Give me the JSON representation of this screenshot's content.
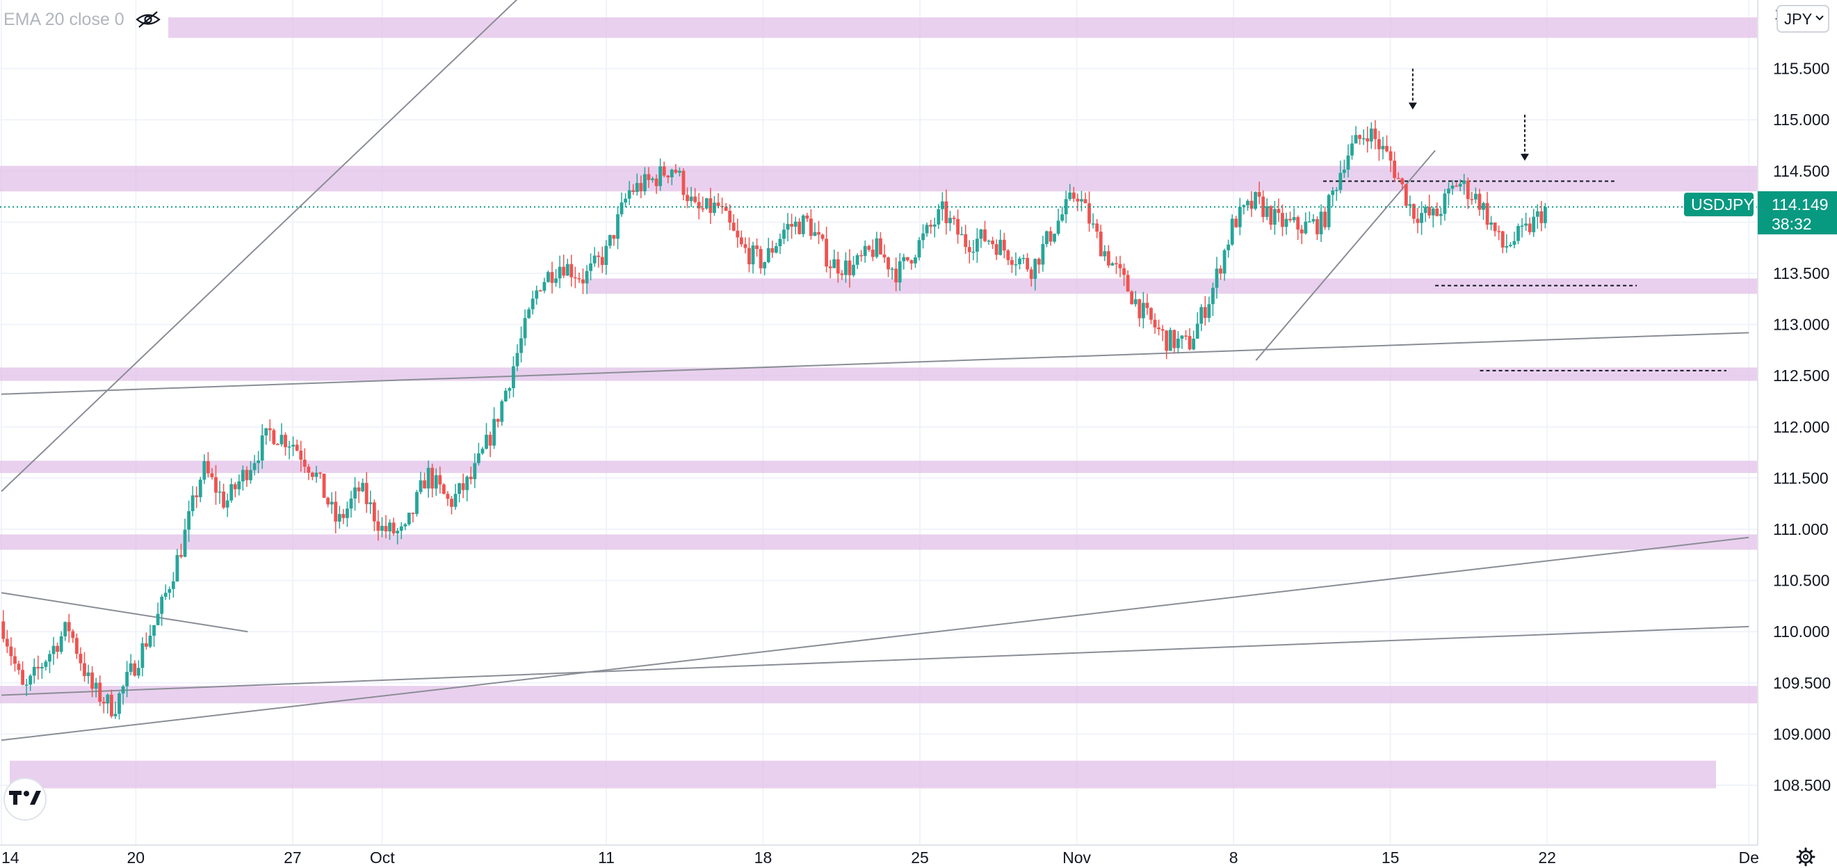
{
  "indicator": {
    "legend_label": "EMA 20 close 0",
    "icon": "eye-crossed-icon"
  },
  "symbol": {
    "name": "USDJPY",
    "last_price_label": "114.149",
    "countdown": "38:32",
    "currency_button": "JPY",
    "colors": {
      "up": "#26a69a",
      "down": "#ef5350",
      "badge": "#089981",
      "zone": "#e1bee7"
    }
  },
  "toolbar": {
    "logo": "tradingview-logo-icon",
    "settings_icon": "gear-icon"
  },
  "chart_data": {
    "type": "candlestick",
    "symbol": "USDJPY",
    "y_axis": {
      "range": [
        108.3,
        116.0
      ],
      "ticks": [
        "108.500",
        "109.000",
        "109.500",
        "110.000",
        "110.500",
        "111.000",
        "111.500",
        "112.000",
        "112.500",
        "113.000",
        "113.500",
        "114.000",
        "114.500",
        "115.000",
        "115.500"
      ],
      "top_cut_label": "1"
    },
    "x_axis": {
      "range": [
        "Sep 14 2021",
        "Dec 1 2021"
      ],
      "ticks": [
        {
          "label": "14",
          "date": "2021-09-14"
        },
        {
          "label": "20",
          "date": "2021-09-20"
        },
        {
          "label": "27",
          "date": "2021-09-27"
        },
        {
          "label": "Oct",
          "date": "2021-10-01"
        },
        {
          "label": "11",
          "date": "2021-10-11"
        },
        {
          "label": "18",
          "date": "2021-10-18"
        },
        {
          "label": "25",
          "date": "2021-10-25"
        },
        {
          "label": "Nov",
          "date": "2021-11-01"
        },
        {
          "label": "8",
          "date": "2021-11-08"
        },
        {
          "label": "15",
          "date": "2021-11-15"
        },
        {
          "label": "22",
          "date": "2021-11-22"
        },
        {
          "label": "De",
          "date": "2021-12-01"
        }
      ]
    },
    "current_price": 114.149,
    "price_path": [
      [
        "2021-09-14",
        110.1
      ],
      [
        "2021-09-15",
        109.4
      ],
      [
        "2021-09-16",
        109.75
      ],
      [
        "2021-09-17",
        110.05
      ],
      [
        "2021-09-18",
        109.45
      ],
      [
        "2021-09-19",
        109.25
      ],
      [
        "2021-09-20",
        109.7
      ],
      [
        "2021-09-21",
        110.15
      ],
      [
        "2021-09-22",
        110.8
      ],
      [
        "2021-09-23",
        111.6
      ],
      [
        "2021-09-24",
        111.25
      ],
      [
        "2021-09-25",
        111.6
      ],
      [
        "2021-09-26",
        111.95
      ],
      [
        "2021-09-27",
        111.85
      ],
      [
        "2021-09-28",
        111.55
      ],
      [
        "2021-09-29",
        111.05
      ],
      [
        "2021-09-30",
        111.4
      ],
      [
        "2021-10-01",
        111.0
      ],
      [
        "2021-10-02",
        110.95
      ],
      [
        "2021-10-03",
        111.55
      ],
      [
        "2021-10-04",
        111.25
      ],
      [
        "2021-10-05",
        111.5
      ],
      [
        "2021-10-06",
        112.0
      ],
      [
        "2021-10-07",
        112.7
      ],
      [
        "2021-10-08",
        113.4
      ],
      [
        "2021-10-09",
        113.6
      ],
      [
        "2021-10-10",
        113.45
      ],
      [
        "2021-10-11",
        113.7
      ],
      [
        "2021-10-12",
        114.3
      ],
      [
        "2021-10-13",
        114.4
      ],
      [
        "2021-10-14",
        114.55
      ],
      [
        "2021-10-15",
        114.1
      ],
      [
        "2021-10-16",
        114.15
      ],
      [
        "2021-10-17",
        113.75
      ],
      [
        "2021-10-18",
        113.6
      ],
      [
        "2021-10-19",
        113.95
      ],
      [
        "2021-10-20",
        114.0
      ],
      [
        "2021-10-21",
        113.6
      ],
      [
        "2021-10-22",
        113.55
      ],
      [
        "2021-10-23",
        113.75
      ],
      [
        "2021-10-24",
        113.5
      ],
      [
        "2021-10-25",
        113.8
      ],
      [
        "2021-10-26",
        114.1
      ],
      [
        "2021-10-27",
        113.8
      ],
      [
        "2021-10-28",
        113.85
      ],
      [
        "2021-10-29",
        113.7
      ],
      [
        "2021-10-30",
        113.55
      ],
      [
        "2021-10-31",
        113.95
      ],
      [
        "2021-11-01",
        114.3
      ],
      [
        "2021-11-02",
        113.8
      ],
      [
        "2021-11-03",
        113.45
      ],
      [
        "2021-11-04",
        113.1
      ],
      [
        "2021-11-05",
        112.85
      ],
      [
        "2021-11-06",
        112.8
      ],
      [
        "2021-11-07",
        113.3
      ],
      [
        "2021-11-08",
        114.0
      ],
      [
        "2021-11-09",
        114.2
      ],
      [
        "2021-11-10",
        114.0
      ],
      [
        "2021-11-11",
        113.95
      ],
      [
        "2021-11-12",
        114.0
      ],
      [
        "2021-11-13",
        114.65
      ],
      [
        "2021-11-14",
        114.9
      ],
      [
        "2021-11-15",
        114.6
      ],
      [
        "2021-11-16",
        114.1
      ],
      [
        "2021-11-17",
        114.05
      ],
      [
        "2021-11-18",
        114.4
      ],
      [
        "2021-11-19",
        114.2
      ],
      [
        "2021-11-20",
        113.75
      ],
      [
        "2021-11-21",
        113.9
      ],
      [
        "2021-11-22",
        114.15
      ]
    ],
    "support_resistance_zones": [
      {
        "from": 115.8,
        "to": 116.0
      },
      {
        "from": 114.3,
        "to": 114.55
      },
      {
        "from": 113.3,
        "to": 113.45
      },
      {
        "from": 112.45,
        "to": 112.58
      },
      {
        "from": 111.55,
        "to": 111.67
      },
      {
        "from": 110.8,
        "to": 110.95
      },
      {
        "from": 109.3,
        "to": 109.47
      },
      {
        "from": 108.47,
        "to": 108.74
      }
    ],
    "trend_lines": [
      {
        "p1": [
          "2021-09-14",
          111.37
        ],
        "p2": [
          "2021-10-08",
          116.38
        ]
      },
      {
        "p1": [
          "2021-09-14",
          112.32
        ],
        "p2": [
          "2021-12-01",
          112.92
        ]
      },
      {
        "p1": [
          "2021-09-14",
          110.38
        ],
        "p2": [
          "2021-09-25",
          110.0
        ]
      },
      {
        "p1": [
          "2021-09-14",
          109.38
        ],
        "p2": [
          "2021-12-01",
          110.05
        ]
      },
      {
        "p1": [
          "2021-09-14",
          108.94
        ],
        "p2": [
          "2021-12-01",
          110.92
        ]
      },
      {
        "p1": [
          "2021-11-09",
          112.65
        ],
        "p2": [
          "2021-11-17",
          114.7
        ]
      }
    ],
    "dashed_levels": [
      {
        "price": 114.4,
        "from": "2021-11-12",
        "to": "2021-11-25"
      },
      {
        "price": 113.38,
        "from": "2021-11-17",
        "to": "2021-11-26"
      },
      {
        "price": 112.55,
        "from": "2021-11-19",
        "to": "2021-11-30"
      }
    ],
    "arrows": [
      {
        "date": "2021-11-16",
        "from": 115.5,
        "to": 115.1
      },
      {
        "date": "2021-11-21",
        "from": 115.05,
        "to": 114.6
      }
    ],
    "grid": true
  }
}
